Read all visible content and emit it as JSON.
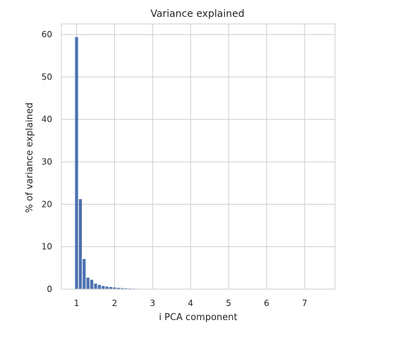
{
  "chart_data": {
    "type": "bar",
    "title": "Variance explained",
    "xlabel": "i PCA component",
    "ylabel": "% of variance explained",
    "xlim": [
      0.6,
      7.8
    ],
    "ylim": [
      0,
      62.5
    ],
    "xticks": [
      1,
      2,
      3,
      4,
      5,
      6,
      7
    ],
    "yticks": [
      0,
      10,
      20,
      30,
      40,
      50,
      60
    ],
    "bar_width": 0.08,
    "x": [
      1.0,
      1.1,
      1.2,
      1.3,
      1.4,
      1.5,
      1.6,
      1.7,
      1.8,
      1.9,
      2.0,
      2.1,
      2.2,
      2.3,
      2.4,
      2.5,
      2.6,
      2.7,
      2.8,
      2.9,
      3.0
    ],
    "values": [
      59.4,
      21.2,
      7.1,
      2.7,
      2.2,
      1.3,
      1.0,
      0.75,
      0.6,
      0.5,
      0.4,
      0.3,
      0.25,
      0.2,
      0.15,
      0.12,
      0.1,
      0.08,
      0.06,
      0.05,
      0.04
    ],
    "grid": true,
    "bar_color": "#4c72b0",
    "grid_color": "#cccccc",
    "frame_color": "#cccccc"
  }
}
